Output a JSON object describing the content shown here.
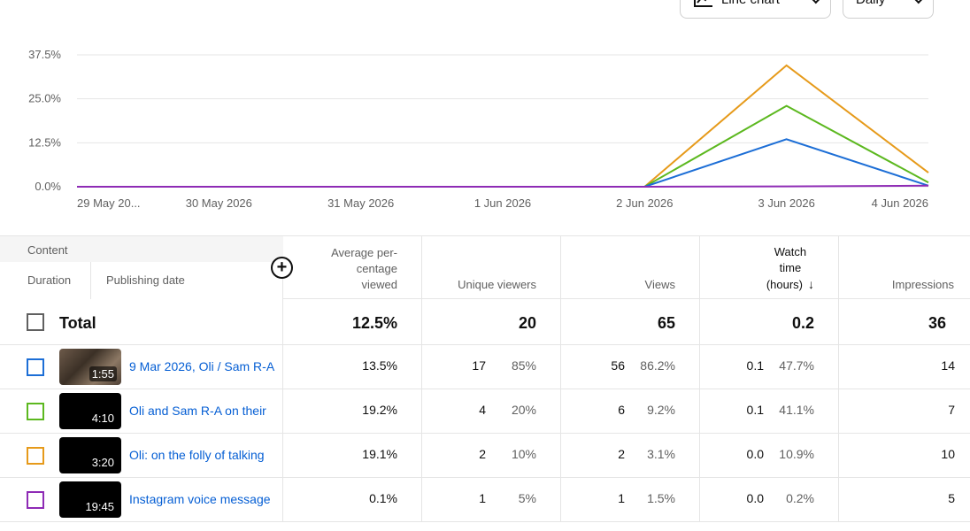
{
  "controls": {
    "chart_type": "Line chart",
    "period": "Daily"
  },
  "chart_data": {
    "type": "line",
    "x": [
      "29 May 20...",
      "30 May 2026",
      "31 May 2026",
      "1 Jun 2026",
      "2 Jun 2026",
      "3 Jun 2026",
      "4 Jun 2026"
    ],
    "yticks": [
      "37.5%",
      "25.0%",
      "12.5%",
      "0.0%"
    ],
    "ylim": [
      0,
      37.5
    ],
    "grid": true,
    "series": [
      {
        "color": "#e69a1a",
        "values": [
          0,
          0,
          0,
          0,
          0,
          34.5,
          4.0
        ]
      },
      {
        "color": "#5cb81f",
        "values": [
          0,
          0,
          0,
          0,
          0,
          23.0,
          1.2
        ]
      },
      {
        "color": "#1c6ed6",
        "values": [
          0,
          0,
          0,
          0,
          0,
          13.5,
          0.3
        ]
      },
      {
        "color": "#8e2bb5",
        "values": [
          0,
          0,
          0,
          0,
          0,
          0.1,
          0.3
        ]
      }
    ]
  },
  "table": {
    "header": {
      "content": "Content",
      "duration": "Duration",
      "publishing_date": "Publishing date",
      "add_column": "+",
      "avg_pct_1": "Average per-",
      "avg_pct_2": "centage",
      "avg_pct_3": "viewed",
      "unique_viewers": "Unique viewers",
      "views": "Views",
      "watch_1": "Watch",
      "watch_2": "time",
      "watch_3": "(hours)",
      "sort_arrow": "↓",
      "impressions": "Impressions"
    },
    "total": {
      "label": "Total",
      "avg_pct": "12.5%",
      "unique_viewers": "20",
      "views": "65",
      "watch_time": "0.2",
      "impressions": "36"
    },
    "rows": [
      {
        "color": "#1c6ed6",
        "duration": "1:55",
        "title": "9 Mar 2026, Oli / Sam R-A",
        "avg_pct": "13.5%",
        "uv": "17",
        "uv_pct": "85%",
        "views": "56",
        "views_pct": "86.2%",
        "wt": "0.1",
        "wt_pct": "47.7%",
        "impressions": "14"
      },
      {
        "color": "#5cb81f",
        "duration": "4:10",
        "title": "Oli and Sam R-A on their",
        "avg_pct": "19.2%",
        "uv": "4",
        "uv_pct": "20%",
        "views": "6",
        "views_pct": "9.2%",
        "wt": "0.1",
        "wt_pct": "41.1%",
        "impressions": "7"
      },
      {
        "color": "#e69a1a",
        "duration": "3:20",
        "title": "Oli: on the folly of talking",
        "avg_pct": "19.1%",
        "uv": "2",
        "uv_pct": "10%",
        "views": "2",
        "views_pct": "3.1%",
        "wt": "0.0",
        "wt_pct": "10.9%",
        "impressions": "10"
      },
      {
        "color": "#8e2bb5",
        "duration": "19:45",
        "title": "Instagram voice message",
        "avg_pct": "0.1%",
        "uv": "1",
        "uv_pct": "5%",
        "views": "1",
        "views_pct": "1.5%",
        "wt": "0.0",
        "wt_pct": "0.2%",
        "impressions": "5"
      }
    ]
  }
}
